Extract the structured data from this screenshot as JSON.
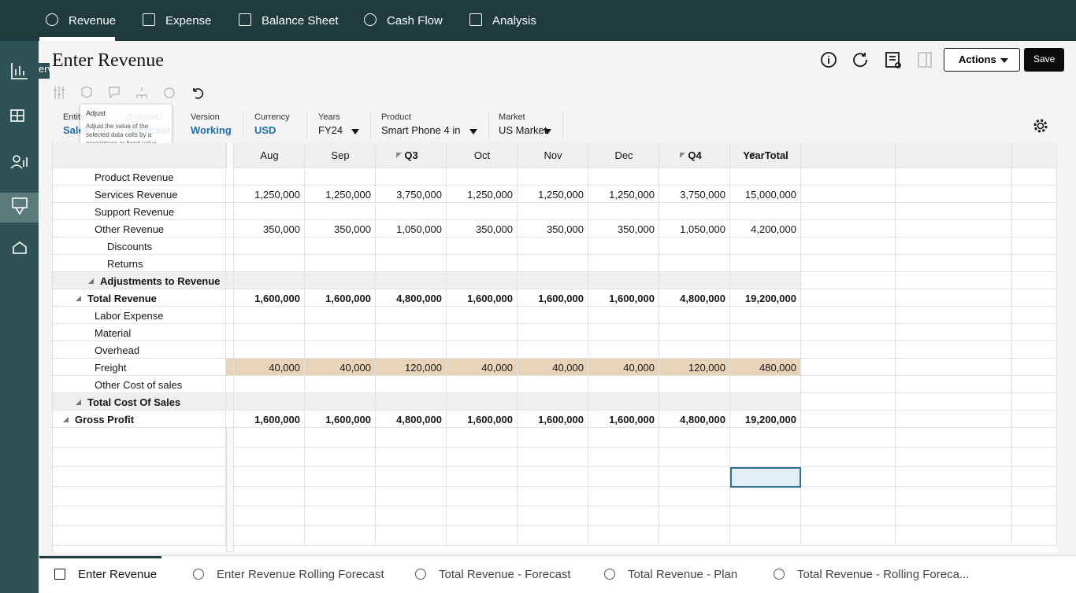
{
  "nav_tabs": [
    "Revenue",
    "Expense",
    "Balance Sheet",
    "Cash Flow",
    "Analysis"
  ],
  "side_label": "erv",
  "title": "Enter Revenue",
  "buttons": {
    "actions": "Actions",
    "save": "Save"
  },
  "tooltip": {
    "title": "Adjust",
    "text": "Adjust the value of the selected data cells by a percentage or fixed value."
  },
  "pov": [
    {
      "label": "Entity",
      "value": "Sales US"
    },
    {
      "label": "Scenario",
      "value": "Forecast"
    },
    {
      "label": "Version",
      "value": "Working"
    },
    {
      "label": "Currency",
      "value": "USD"
    },
    {
      "label": "Years",
      "value": "FY24",
      "dropdown": true
    },
    {
      "label": "Product",
      "value": "Smart Phone 4 in",
      "dropdown": true
    },
    {
      "label": "Market",
      "value": "US Market",
      "dropdown": true
    }
  ],
  "columns": [
    {
      "label": "Aug"
    },
    {
      "label": "Sep"
    },
    {
      "label": "Q3",
      "collapsible": true
    },
    {
      "label": "Oct"
    },
    {
      "label": "Nov"
    },
    {
      "label": "Dec"
    },
    {
      "label": "Q4",
      "collapsible": true
    },
    {
      "label": "YearTotal",
      "collapsible": true
    }
  ],
  "rows": [
    {
      "label": "Product Revenue",
      "level": 3,
      "values": [
        null,
        null,
        null,
        null,
        null,
        null,
        null,
        null
      ]
    },
    {
      "label": "Services Revenue",
      "level": 3,
      "values": [
        "1,250,000",
        "1,250,000",
        "3,750,000",
        "1,250,000",
        "1,250,000",
        "1,250,000",
        "3,750,000",
        "15,000,000"
      ]
    },
    {
      "label": "Support Revenue",
      "level": 3,
      "values": [
        null,
        null,
        null,
        null,
        null,
        null,
        null,
        null
      ]
    },
    {
      "label": "Other Revenue",
      "level": 3,
      "values": [
        "350,000",
        "350,000",
        "1,050,000",
        "350,000",
        "350,000",
        "350,000",
        "1,050,000",
        "4,200,000"
      ]
    },
    {
      "label": "Discounts",
      "level": 4,
      "values": [
        null,
        null,
        null,
        null,
        null,
        null,
        null,
        null
      ]
    },
    {
      "label": "Returns",
      "level": 4,
      "values": [
        null,
        null,
        null,
        null,
        null,
        null,
        null,
        null
      ]
    },
    {
      "label": "Adjustments to Revenue",
      "level": 3,
      "bold": true,
      "collapsible": true,
      "fill": "shaded",
      "values": [
        null,
        null,
        null,
        null,
        null,
        null,
        null,
        null
      ]
    },
    {
      "label": "Total Revenue",
      "level": 2,
      "bold": true,
      "collapsible": true,
      "values": [
        "1,600,000",
        "1,600,000",
        "4,800,000",
        "1,600,000",
        "1,600,000",
        "1,600,000",
        "4,800,000",
        "19,200,000"
      ]
    },
    {
      "label": "Labor Expense",
      "level": 3,
      "values": [
        null,
        null,
        null,
        null,
        null,
        null,
        null,
        null
      ]
    },
    {
      "label": "Material",
      "level": 3,
      "values": [
        null,
        null,
        null,
        null,
        null,
        null,
        null,
        null
      ]
    },
    {
      "label": "Overhead",
      "level": 3,
      "values": [
        null,
        null,
        null,
        null,
        null,
        null,
        null,
        null
      ]
    },
    {
      "label": "Freight",
      "level": 3,
      "fill": "highlight",
      "values": [
        "40,000",
        "40,000",
        "120,000",
        "40,000",
        "40,000",
        "40,000",
        "120,000",
        "480,000"
      ]
    },
    {
      "label": "Other Cost of sales",
      "level": 3,
      "values": [
        null,
        null,
        null,
        null,
        null,
        null,
        null,
        null
      ]
    },
    {
      "label": "Total Cost Of Sales",
      "level": 2,
      "bold": true,
      "collapsible": true,
      "fill": "shaded",
      "values": [
        null,
        null,
        null,
        null,
        null,
        null,
        null,
        null
      ]
    },
    {
      "label": "Gross Profit",
      "level": 1,
      "bold": true,
      "collapsible": true,
      "values": [
        "1,600,000",
        "1,600,000",
        "4,800,000",
        "1,600,000",
        "1,600,000",
        "1,600,000",
        "4,800,000",
        "19,200,000"
      ]
    }
  ],
  "bottom_tabs": [
    "Enter Revenue",
    "Enter Revenue Rolling Forecast",
    "Total Revenue - Forecast",
    "Total Revenue - Plan",
    "Total Revenue - Rolling Foreca..."
  ]
}
